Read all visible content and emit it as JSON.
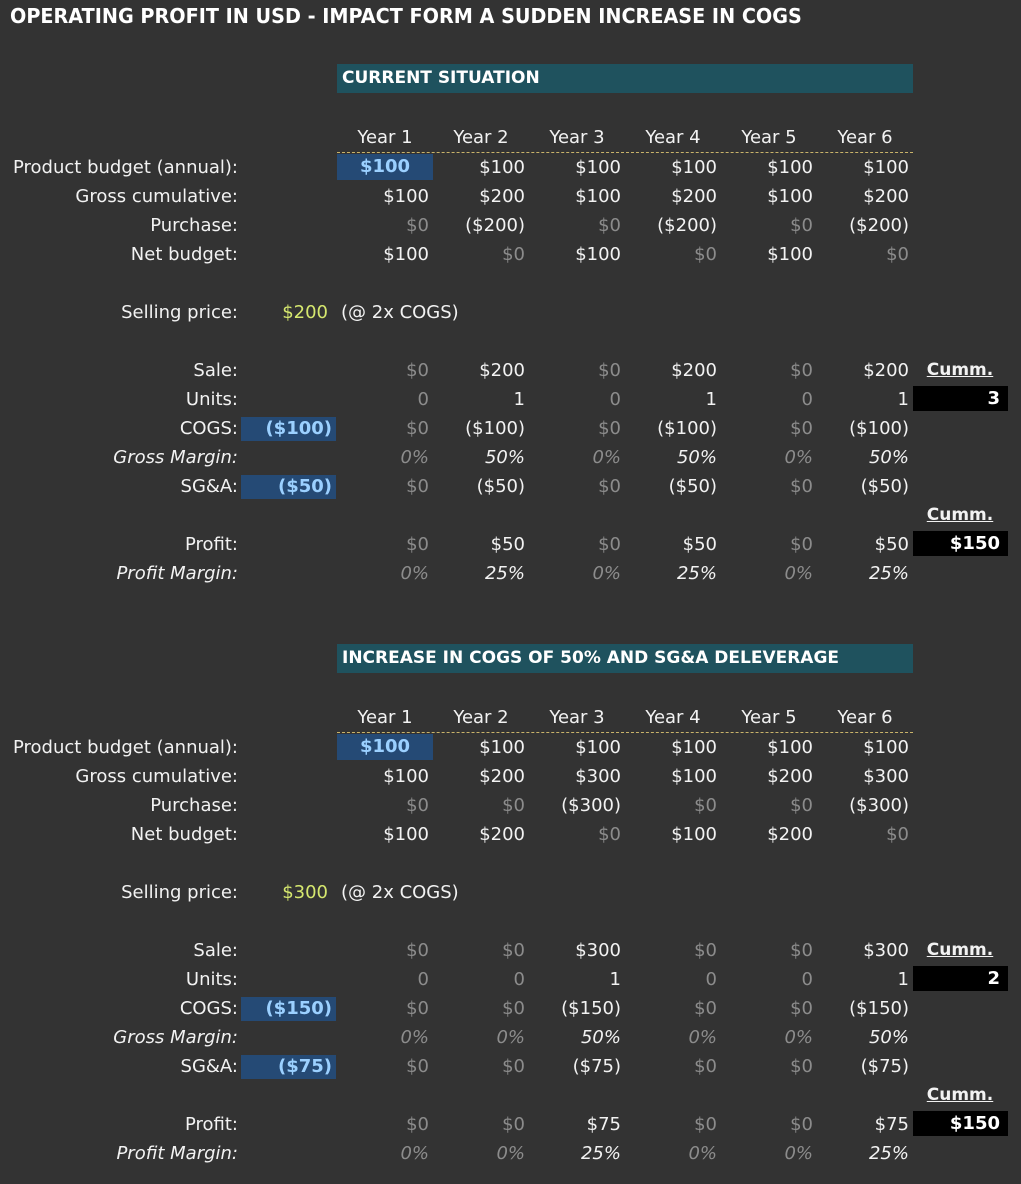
{
  "title": "OPERATING PROFIT IN USD - IMPACT FORM A SUDDEN INCREASE IN COGS",
  "labels": {
    "product_budget": "Product budget (annual):",
    "gross_cumulative": "Gross cumulative:",
    "purchase": "Purchase:",
    "net_budget": "Net budget:",
    "selling_price": "Selling price:",
    "sale": "Sale:",
    "units": "Units:",
    "cogs": "COGS:",
    "gross_margin": "Gross Margin:",
    "sga": "SG&A:",
    "profit": "Profit:",
    "profit_margin": "Profit Margin:",
    "cumm": "Cumm."
  },
  "years": [
    "Year 1",
    "Year 2",
    "Year 3",
    "Year 4",
    "Year 5",
    "Year 6"
  ],
  "sections": [
    {
      "header": "CURRENT SITUATION",
      "product_budget": [
        "$100",
        "$100",
        "$100",
        "$100",
        "$100",
        "$100"
      ],
      "gross_cumulative": [
        "$100",
        "$200",
        "$100",
        "$200",
        "$100",
        "$200"
      ],
      "purchase": [
        "$0",
        "($200)",
        "$0",
        "($200)",
        "$0",
        "($200)"
      ],
      "net_budget": [
        "$100",
        "$0",
        "$100",
        "$0",
        "$100",
        "$0"
      ],
      "selling_price": "$200",
      "selling_note": "(@ 2x COGS)",
      "sale": [
        "$0",
        "$200",
        "$0",
        "$200",
        "$0",
        "$200"
      ],
      "units": [
        "0",
        "1",
        "0",
        "1",
        "0",
        "1"
      ],
      "cogs_input": "($100)",
      "cogs": [
        "$0",
        "($100)",
        "$0",
        "($100)",
        "$0",
        "($100)"
      ],
      "gross_margin": [
        "0%",
        "50%",
        "0%",
        "50%",
        "0%",
        "50%"
      ],
      "sga_input": "($50)",
      "sga": [
        "$0",
        "($50)",
        "$0",
        "($50)",
        "$0",
        "($50)"
      ],
      "profit": [
        "$0",
        "$50",
        "$0",
        "$50",
        "$0",
        "$50"
      ],
      "profit_margin": [
        "0%",
        "25%",
        "0%",
        "25%",
        "0%",
        "25%"
      ],
      "cumm_units": "3",
      "cumm_profit": "$150"
    },
    {
      "header": "INCREASE IN COGS OF 50% AND SG&A DELEVERAGE",
      "product_budget": [
        "$100",
        "$100",
        "$100",
        "$100",
        "$100",
        "$100"
      ],
      "gross_cumulative": [
        "$100",
        "$200",
        "$300",
        "$100",
        "$200",
        "$300"
      ],
      "purchase": [
        "$0",
        "$0",
        "($300)",
        "$0",
        "$0",
        "($300)"
      ],
      "net_budget": [
        "$100",
        "$200",
        "$0",
        "$100",
        "$200",
        "$0"
      ],
      "selling_price": "$300",
      "selling_note": "(@ 2x COGS)",
      "sale": [
        "$0",
        "$0",
        "$300",
        "$0",
        "$0",
        "$300"
      ],
      "units": [
        "0",
        "0",
        "1",
        "0",
        "0",
        "1"
      ],
      "cogs_input": "($150)",
      "cogs": [
        "$0",
        "$0",
        "($150)",
        "$0",
        "$0",
        "($150)"
      ],
      "gross_margin": [
        "0%",
        "0%",
        "50%",
        "0%",
        "0%",
        "50%"
      ],
      "sga_input": "($75)",
      "sga": [
        "$0",
        "$0",
        "($75)",
        "$0",
        "$0",
        "($75)"
      ],
      "profit": [
        "$0",
        "$0",
        "$75",
        "$0",
        "$0",
        "$75"
      ],
      "profit_margin": [
        "0%",
        "0%",
        "25%",
        "0%",
        "0%",
        "25%"
      ],
      "cumm_units": "2",
      "cumm_profit": "$150"
    }
  ]
}
